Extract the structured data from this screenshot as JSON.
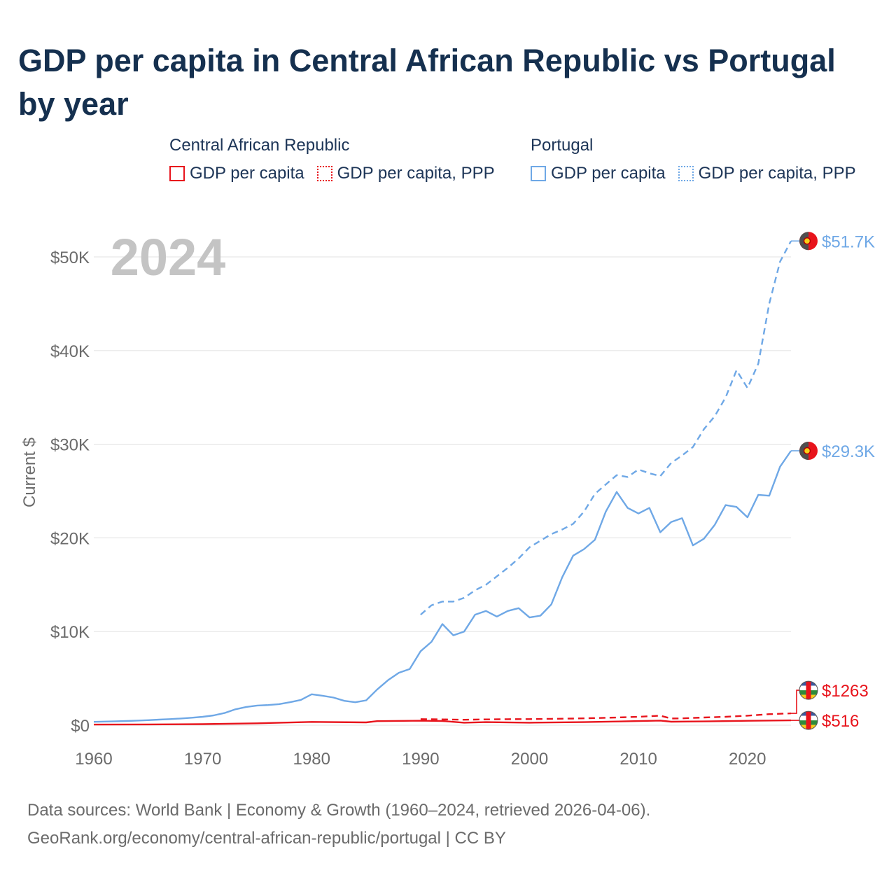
{
  "title": "GDP per capita in Central African Republic vs Portugal by year",
  "legend": {
    "groups": [
      {
        "name": "Central African Republic",
        "color": "#e8141c",
        "items": [
          {
            "label": "GDP per capita",
            "style": "solid"
          },
          {
            "label": "GDP per capita, PPP",
            "style": "dotted"
          }
        ]
      },
      {
        "name": "Portugal",
        "color": "#6fa8e6",
        "items": [
          {
            "label": "GDP per capita",
            "style": "solid"
          },
          {
            "label": "GDP per capita, PPP",
            "style": "dotted"
          }
        ]
      }
    ]
  },
  "chart_data": {
    "type": "line",
    "year_label": "2024",
    "ylabel": "Current $",
    "xlim": [
      1960,
      2024
    ],
    "ylim": [
      0,
      52000
    ],
    "x_ticks": [
      1960,
      1970,
      1980,
      1990,
      2000,
      2010,
      2020
    ],
    "y_ticks": [
      {
        "value": 0,
        "label": "$0"
      },
      {
        "value": 10000,
        "label": "$10K"
      },
      {
        "value": 20000,
        "label": "$20K"
      },
      {
        "value": 30000,
        "label": "$30K"
      },
      {
        "value": 40000,
        "label": "$40K"
      },
      {
        "value": 50000,
        "label": "$50K"
      }
    ],
    "grid": true,
    "series": [
      {
        "name": "Portugal GDP per capita, PPP",
        "country": "Portugal",
        "color": "#6fa8e6",
        "dash": "dashed",
        "end_label": "$51.7K",
        "x": [
          1990,
          1991,
          1992,
          1993,
          1994,
          1995,
          1996,
          1997,
          1998,
          1999,
          2000,
          2001,
          2002,
          2003,
          2004,
          2005,
          2006,
          2007,
          2008,
          2009,
          2010,
          2011,
          2012,
          2013,
          2014,
          2015,
          2016,
          2017,
          2018,
          2019,
          2020,
          2021,
          2022,
          2023,
          2024
        ],
        "values": [
          11800,
          12800,
          13200,
          13200,
          13600,
          14400,
          15000,
          15900,
          16800,
          17800,
          19000,
          19700,
          20400,
          20900,
          21500,
          22800,
          24700,
          25700,
          26700,
          26500,
          27300,
          26900,
          26600,
          28000,
          28800,
          29700,
          31600,
          33000,
          35000,
          37900,
          36000,
          38600,
          45000,
          49500,
          51700
        ]
      },
      {
        "name": "Portugal GDP per capita",
        "country": "Portugal",
        "color": "#6fa8e6",
        "dash": "solid",
        "end_label": "$29.3K",
        "x": [
          1960,
          1961,
          1962,
          1963,
          1964,
          1965,
          1966,
          1967,
          1968,
          1969,
          1970,
          1971,
          1972,
          1973,
          1974,
          1975,
          1976,
          1977,
          1978,
          1979,
          1980,
          1981,
          1982,
          1983,
          1984,
          1985,
          1986,
          1987,
          1988,
          1989,
          1990,
          1991,
          1992,
          1993,
          1994,
          1995,
          1996,
          1997,
          1998,
          1999,
          2000,
          2001,
          2002,
          2003,
          2004,
          2005,
          2006,
          2007,
          2008,
          2009,
          2010,
          2011,
          2012,
          2013,
          2014,
          2015,
          2016,
          2017,
          2018,
          2019,
          2020,
          2021,
          2022,
          2023,
          2024
        ],
        "values": [
          360,
          390,
          420,
          450,
          490,
          540,
          600,
          650,
          720,
          800,
          900,
          1050,
          1300,
          1700,
          1950,
          2100,
          2150,
          2250,
          2450,
          2700,
          3300,
          3150,
          2950,
          2600,
          2450,
          2650,
          3800,
          4800,
          5600,
          6000,
          7900,
          8900,
          10800,
          9600,
          10000,
          11800,
          12200,
          11600,
          12200,
          12500,
          11500,
          11700,
          12900,
          15800,
          18100,
          18800,
          19800,
          22800,
          24900,
          23200,
          22600,
          23200,
          20600,
          21700,
          22100,
          19200,
          19900,
          21400,
          23500,
          23300,
          22200,
          24600,
          24500,
          27600,
          29300
        ]
      },
      {
        "name": "Central African Republic GDP per capita, PPP",
        "country": "Central African Republic",
        "color": "#e8141c",
        "dash": "dashed",
        "end_label": "$1263",
        "x": [
          1990,
          1992,
          1994,
          1996,
          1998,
          2000,
          2002,
          2004,
          2006,
          2008,
          2010,
          2012,
          2013,
          2014,
          2016,
          2018,
          2020,
          2022,
          2024
        ],
        "values": [
          650,
          620,
          580,
          620,
          640,
          650,
          680,
          710,
          760,
          820,
          900,
          1020,
          720,
          730,
          820,
          900,
          1020,
          1180,
          1263
        ]
      },
      {
        "name": "Central African Republic GDP per capita",
        "country": "Central African Republic",
        "color": "#e8141c",
        "dash": "solid",
        "end_label": "$516",
        "x": [
          1960,
          1965,
          1970,
          1975,
          1980,
          1985,
          1986,
          1990,
          1992,
          1994,
          1996,
          2000,
          2005,
          2010,
          2012,
          2013,
          2016,
          2020,
          2024
        ],
        "values": [
          70,
          85,
          110,
          200,
          350,
          300,
          430,
          480,
          450,
          270,
          330,
          270,
          330,
          440,
          490,
          370,
          400,
          470,
          516
        ]
      }
    ]
  },
  "footer": {
    "line1": "Data sources: World Bank | Economy & Growth (1960–2024, retrieved 2026-04-06).",
    "line2": "GeoRank.org/economy/central-african-republic/portugal | CC BY"
  }
}
